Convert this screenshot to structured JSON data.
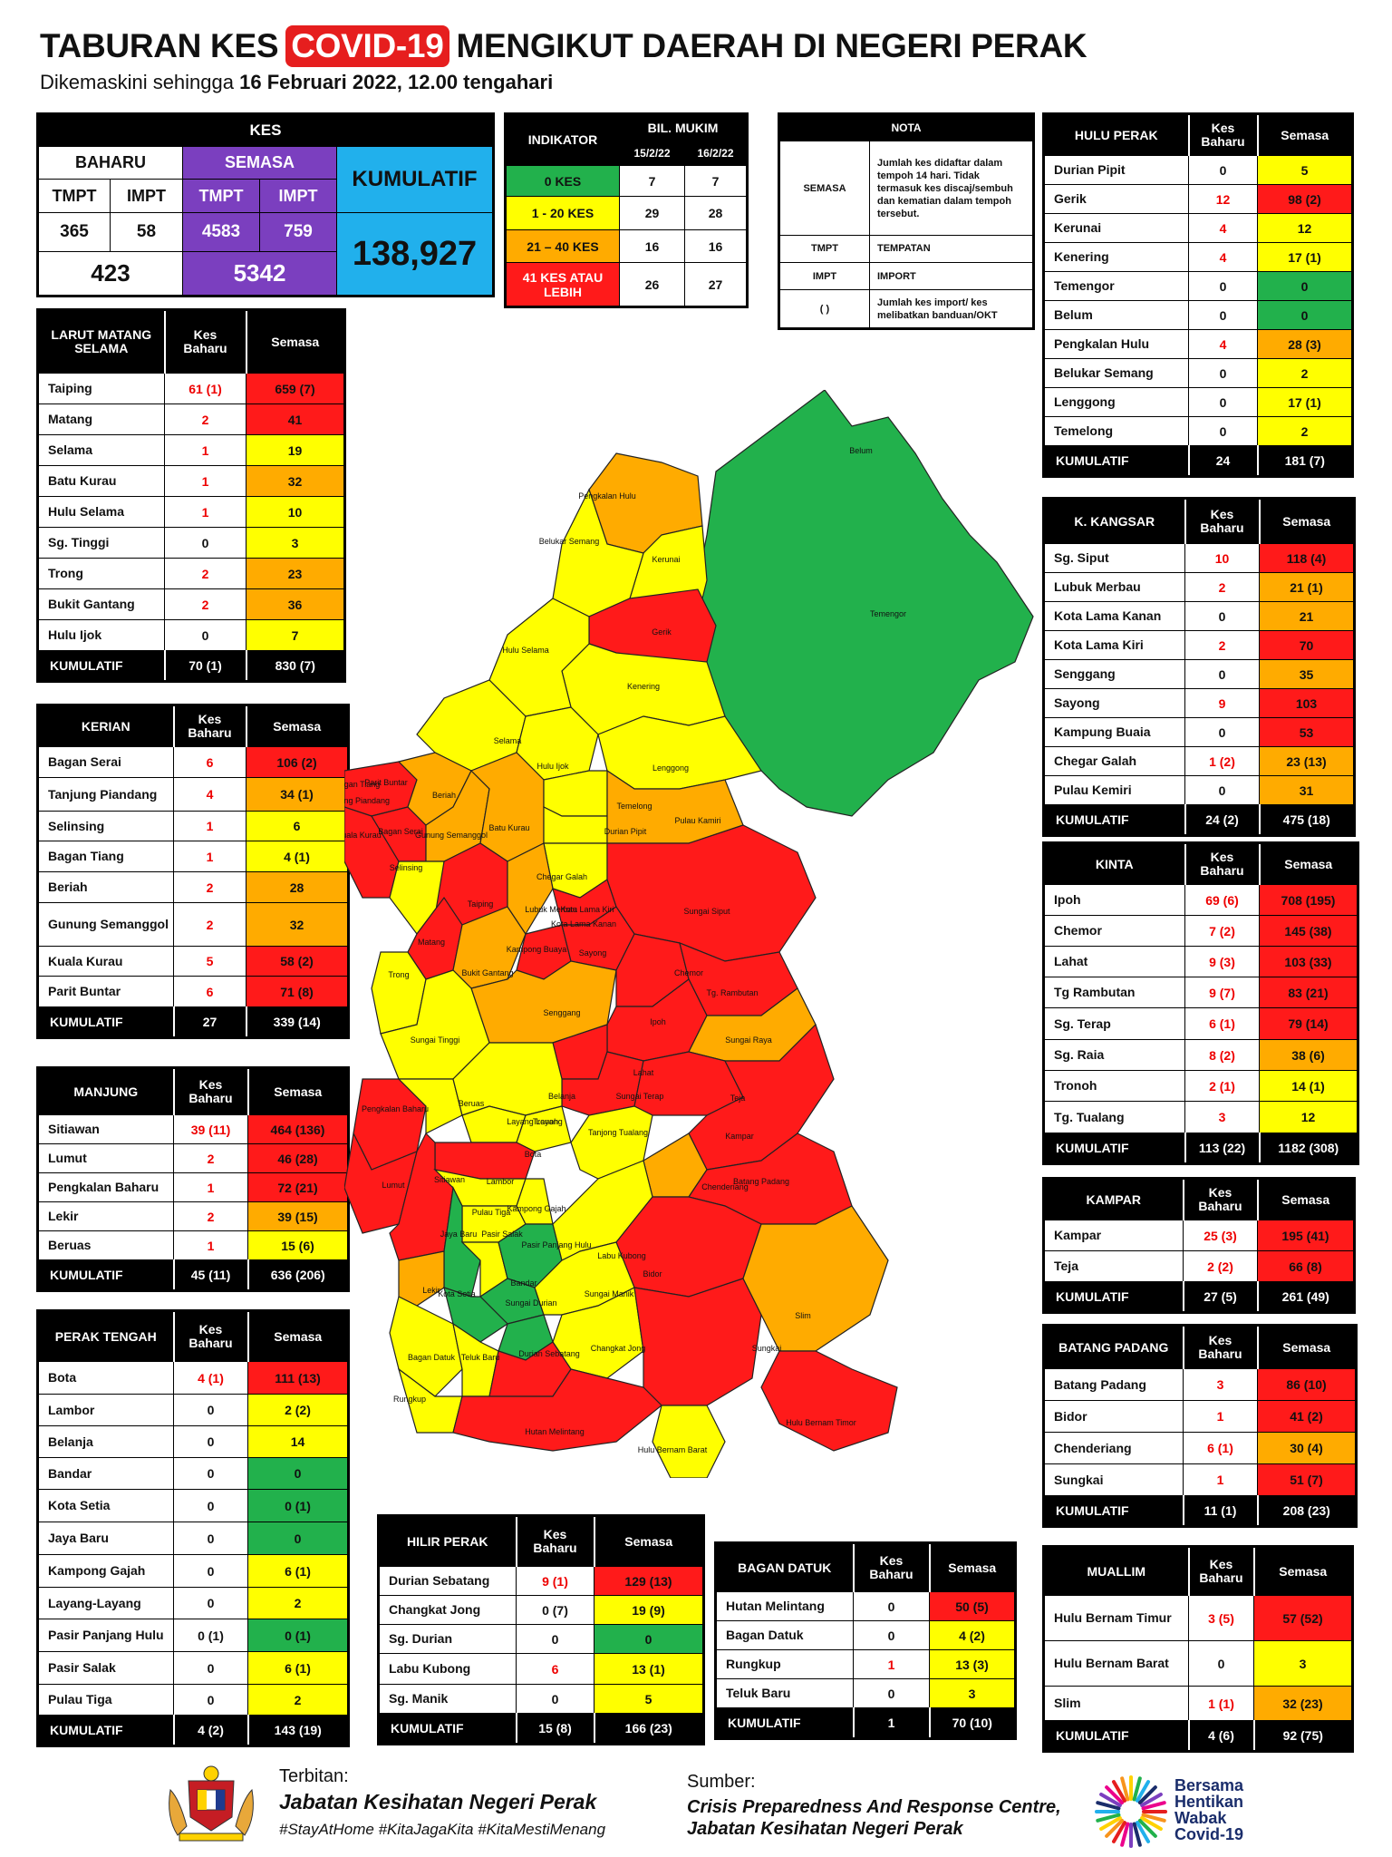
{
  "title": {
    "pre": "TABURAN KES",
    "hl": "COVID-19",
    "post": "MENGIKUT DAERAH DI NEGERI PERAK"
  },
  "subtitle": {
    "pre": "Dikemaskini sehingga",
    "date": "16 Februari 2022, 12.00 tengahari"
  },
  "kes_box": {
    "header": "KES",
    "baharu": "BAHARU",
    "semasa": "SEMASA",
    "tmpt": "TMPT",
    "impt": "IMPT",
    "kumulatif_label": "KUMULATIF",
    "baharu_tmpt": "365",
    "baharu_impt": "58",
    "semasa_tmpt": "4583",
    "semasa_impt": "759",
    "baharu_total": "423",
    "semasa_total": "5342",
    "kumulatif": "138,927"
  },
  "indikator": {
    "header": "INDIKATOR",
    "bil": "BIL. MUKIM",
    "d1": "15/2/22",
    "d2": "16/2/22",
    "rows": [
      {
        "label": "0 KES",
        "a": "7",
        "b": "7",
        "c": "#22b14c"
      },
      {
        "label": "1 - 20 KES",
        "a": "29",
        "b": "28",
        "c": "#ffff00"
      },
      {
        "label": "21 – 40 KES",
        "a": "16",
        "b": "16",
        "c": "#ffab00"
      },
      {
        "label": "41 KES ATAU LEBIH",
        "a": "26",
        "b": "27",
        "c": "#ff1a1a"
      }
    ]
  },
  "nota": {
    "header": "NOTA",
    "rows": [
      {
        "k": "SEMASA",
        "v": "Jumlah kes didaftar dalam tempoh 14 hari. Tidak termasuk kes discaj/sembuh dan kematian dalam tempoh tersebut."
      },
      {
        "k": "TMPT",
        "v": "TEMPATAN"
      },
      {
        "k": "IMPT",
        "v": "IMPORT"
      },
      {
        "k": "( )",
        "v": "Jumlah kes import/ kes melibatkan banduan/OKT"
      }
    ]
  },
  "col_kes": "Kes Baharu",
  "col_semasa": "Semasa",
  "districts": [
    {
      "id": "lms",
      "title": "LARUT MATANG SELAMA",
      "rows": [
        [
          "Taiping",
          "61 (1)",
          "659 (7)",
          "r"
        ],
        [
          "Matang",
          "2",
          "41",
          "r"
        ],
        [
          "Selama",
          "1",
          "19",
          "y"
        ],
        [
          "Batu Kurau",
          "1",
          "32",
          "o"
        ],
        [
          "Hulu Selama",
          "1",
          "10",
          "y"
        ],
        [
          "Sg. Tinggi",
          "0",
          "3",
          "y"
        ],
        [
          "Trong",
          "2",
          "23",
          "o"
        ],
        [
          "Bukit Gantang",
          "2",
          "36",
          "o"
        ],
        [
          "Hulu Ijok",
          "0",
          "7",
          "y"
        ]
      ],
      "total": [
        "KUMULATIF",
        "70 (1)",
        "830 (7)"
      ]
    },
    {
      "id": "kerian",
      "title": "KERIAN",
      "rows": [
        [
          "Bagan Serai",
          "6",
          "106 (2)",
          "r"
        ],
        [
          "Tanjung Piandang",
          "4",
          "34 (1)",
          "o"
        ],
        [
          "Selinsing",
          "1",
          "6",
          "y"
        ],
        [
          "Bagan Tiang",
          "1",
          "4 (1)",
          "y"
        ],
        [
          "Beriah",
          "2",
          "28",
          "o"
        ],
        [
          "Gunung Semanggol",
          "2",
          "32",
          "o"
        ],
        [
          "Kuala Kurau",
          "5",
          "58 (2)",
          "r"
        ],
        [
          "Parit Buntar",
          "6",
          "71 (8)",
          "r"
        ]
      ],
      "total": [
        "KUMULATIF",
        "27",
        "339 (14)"
      ]
    },
    {
      "id": "manjung",
      "title": "MANJUNG",
      "rows": [
        [
          "Sitiawan",
          "39 (11)",
          "464 (136)",
          "r"
        ],
        [
          "Lumut",
          "2",
          "46 (28)",
          "r"
        ],
        [
          "Pengkalan Baharu",
          "1",
          "72 (21)",
          "r"
        ],
        [
          "Lekir",
          "2",
          "39 (15)",
          "o"
        ],
        [
          "Beruas",
          "1",
          "15 (6)",
          "y"
        ]
      ],
      "total": [
        "KUMULATIF",
        "45 (11)",
        "636 (206)"
      ]
    },
    {
      "id": "pt",
      "title": "PERAK TENGAH",
      "rows": [
        [
          "Bota",
          "4 (1)",
          "111 (13)",
          "r"
        ],
        [
          "Lambor",
          "0",
          "2 (2)",
          "y"
        ],
        [
          "Belanja",
          "0",
          "14",
          "y"
        ],
        [
          "Bandar",
          "0",
          "0",
          "g"
        ],
        [
          "Kota Setia",
          "0",
          "0 (1)",
          "g"
        ],
        [
          "Jaya Baru",
          "0",
          "0",
          "g"
        ],
        [
          "Kampong Gajah",
          "0",
          "6 (1)",
          "y"
        ],
        [
          "Layang-Layang",
          "0",
          "2",
          "y"
        ],
        [
          "Pasir Panjang Hulu",
          "0 (1)",
          "0 (1)",
          "g"
        ],
        [
          "Pasir Salak",
          "0",
          "6 (1)",
          "y"
        ],
        [
          "Pulau Tiga",
          "0",
          "2",
          "y"
        ]
      ],
      "total": [
        "KUMULATIF",
        "4 (2)",
        "143 (19)"
      ]
    },
    {
      "id": "hp",
      "title": "HILIR PERAK",
      "rows": [
        [
          "Durian Sebatang",
          "9 (1)",
          "129 (13)",
          "r"
        ],
        [
          "Changkat Jong",
          "0 (7)",
          "19 (9)",
          "y"
        ],
        [
          "Sg. Durian",
          "0",
          "0",
          "g"
        ],
        [
          "Labu Kubong",
          "6",
          "13 (1)",
          "y"
        ],
        [
          "Sg. Manik",
          "0",
          "5",
          "y"
        ]
      ],
      "total": [
        "KUMULATIF",
        "15 (8)",
        "166 (23)"
      ]
    },
    {
      "id": "bd",
      "title": "BAGAN DATUK",
      "rows": [
        [
          "Hutan Melintang",
          "0",
          "50 (5)",
          "r"
        ],
        [
          "Bagan Datuk",
          "0",
          "4 (2)",
          "y"
        ],
        [
          "Rungkup",
          "1",
          "13 (3)",
          "y"
        ],
        [
          "Teluk Baru",
          "0",
          "3",
          "y"
        ]
      ],
      "total": [
        "KUMULATIF",
        "1",
        "70 (10)"
      ]
    },
    {
      "id": "hulu",
      "title": "HULU PERAK",
      "rows": [
        [
          "Durian Pipit",
          "0",
          "5",
          "y"
        ],
        [
          "Gerik",
          "12",
          "98 (2)",
          "r"
        ],
        [
          "Kerunai",
          "4",
          "12",
          "y"
        ],
        [
          "Kenering",
          "4",
          "17 (1)",
          "y"
        ],
        [
          "Temengor",
          "0",
          "0",
          "g"
        ],
        [
          "Belum",
          "0",
          "0",
          "g"
        ],
        [
          "Pengkalan Hulu",
          "4",
          "28 (3)",
          "o"
        ],
        [
          "Belukar Semang",
          "0",
          "2",
          "y"
        ],
        [
          "Lenggong",
          "0",
          "17 (1)",
          "y"
        ],
        [
          "Temelong",
          "0",
          "2",
          "y"
        ]
      ],
      "total": [
        "KUMULATIF",
        "24",
        "181 (7)"
      ]
    },
    {
      "id": "kk",
      "title": "K. KANGSAR",
      "rows": [
        [
          "Sg. Siput",
          "10",
          "118 (4)",
          "r"
        ],
        [
          "Lubuk Merbau",
          "2",
          "21 (1)",
          "o"
        ],
        [
          "Kota Lama Kanan",
          "0",
          "21",
          "o"
        ],
        [
          "Kota Lama Kiri",
          "2",
          "70",
          "r"
        ],
        [
          "Senggang",
          "0",
          "35",
          "o"
        ],
        [
          "Sayong",
          "9",
          "103",
          "r"
        ],
        [
          "Kampung Buaia",
          "0",
          "53",
          "r"
        ],
        [
          "Chegar Galah",
          "1 (2)",
          "23 (13)",
          "o"
        ],
        [
          "Pulau Kemiri",
          "0",
          "31",
          "o"
        ]
      ],
      "total": [
        "KUMULATIF",
        "24 (2)",
        "475 (18)"
      ]
    },
    {
      "id": "kinta",
      "title": "KINTA",
      "rows": [
        [
          "Ipoh",
          "69 (6)",
          "708 (195)",
          "r"
        ],
        [
          "Chemor",
          "7 (2)",
          "145 (38)",
          "r"
        ],
        [
          "Lahat",
          "9 (3)",
          "103 (33)",
          "r"
        ],
        [
          "Tg Rambutan",
          "9 (7)",
          "83 (21)",
          "r"
        ],
        [
          "Sg. Terap",
          "6 (1)",
          "79 (14)",
          "r"
        ],
        [
          "Sg. Raia",
          "8 (2)",
          "38 (6)",
          "o"
        ],
        [
          "Tronoh",
          "2 (1)",
          "14 (1)",
          "y"
        ],
        [
          "Tg. Tualang",
          "3",
          "12",
          "y"
        ]
      ],
      "total": [
        "KUMULATIF",
        "113 (22)",
        "1182 (308)"
      ]
    },
    {
      "id": "kampar",
      "title": "KAMPAR",
      "rows": [
        [
          "Kampar",
          "25 (3)",
          "195 (41)",
          "r"
        ],
        [
          "Teja",
          "2 (2)",
          "66 (8)",
          "r"
        ]
      ],
      "total": [
        "KUMULATIF",
        "27 (5)",
        "261 (49)"
      ]
    },
    {
      "id": "bp",
      "title": "BATANG PADANG",
      "rows": [
        [
          "Batang Padang",
          "3",
          "86 (10)",
          "r"
        ],
        [
          "Bidor",
          "1",
          "41 (2)",
          "r"
        ],
        [
          "Chenderiang",
          "6 (1)",
          "30 (4)",
          "o"
        ],
        [
          "Sungkai",
          "1",
          "51 (7)",
          "r"
        ]
      ],
      "total": [
        "KUMULATIF",
        "11 (1)",
        "208 (23)"
      ]
    },
    {
      "id": "muallim",
      "title": "MUALLIM",
      "rows": [
        [
          "Hulu Bernam Timur",
          "3 (5)",
          "57 (52)",
          "r"
        ],
        [
          "Hulu Bernam Barat",
          "0",
          "3",
          "y"
        ],
        [
          "Slim",
          "1 (1)",
          "32 (23)",
          "o"
        ]
      ],
      "total": [
        "KUMULATIF",
        "4 (6)",
        "92 (75)"
      ]
    }
  ],
  "map_labels": [
    "Belum",
    "Temengor",
    "Pengkalan Hulu",
    "Belukar Semang",
    "Kerunai",
    "Gerik",
    "Kenering",
    "Hulu Selama",
    "Selama",
    "Hulu Ijok",
    "Lenggong",
    "Temelong",
    "Durian Pipit",
    "Pulau Kamiri",
    "Bagan Tiang",
    "Parit Buntar",
    "Tanjung Piandang",
    "Kuala Kurau",
    "Bagan Serai",
    "Beriah",
    "Gunung Semanggol",
    "Batu Kurau",
    "Chegar Galah",
    "Selinsing",
    "Taiping",
    "Matang",
    "Lubuk Merbau",
    "Kota Lama Kiri",
    "Kota Lama Kanan",
    "Kampong Buaya",
    "Sayong",
    "Sungai Siput",
    "Bukit Gantang",
    "Trong",
    "Chemor",
    "Tg. Rambutan",
    "Senggang",
    "Sungai Tinggi",
    "Ipoh",
    "Sungai Raya",
    "Lahat",
    "Pengkalan Baharu",
    "Beruas",
    "Belanja",
    "Sungai Terap",
    "Teja",
    "Layang Layang",
    "Tronoh",
    "Tanjong Tualang",
    "Kampar",
    "Bota",
    "Lumut",
    "Sitiawan",
    "Lambor",
    "Pulau Tiga",
    "Kampong Gajah",
    "Chenderiang",
    "Batang Padang",
    "Jaya Baru",
    "Pasir Salak",
    "Pasir Panjang Hulu",
    "Labu Kubong",
    "Bandar",
    "Bidor",
    "Lekir",
    "Kota Setia",
    "Sungai Durian",
    "Sungai Manik",
    "Changkat Jong",
    "Bagan Datuk",
    "Teluk Baru",
    "Durian Sebatang",
    "Sungkai",
    "Slim",
    "Rungkup",
    "Hutan Melintang",
    "Hulu Bernam Barat",
    "Hulu Bernam Timor"
  ],
  "footer": {
    "terbitan": "Terbitan:",
    "jkn": "Jabatan Kesihatan Negeri Perak",
    "tags": "#StayAtHome #KitaJagaKita #KitaMestiMenang",
    "sumber": "Sumber:",
    "src1": "Crisis Preparedness And Response Centre,",
    "src2": "Jabatan Kesihatan Negeri Perak",
    "logo_r": "Bersama Hentikan Wabak Covid-19"
  },
  "colors": {
    "g": "#22b14c",
    "y": "#ffff00",
    "o": "#ffab00",
    "r": "#ff1a1a"
  }
}
